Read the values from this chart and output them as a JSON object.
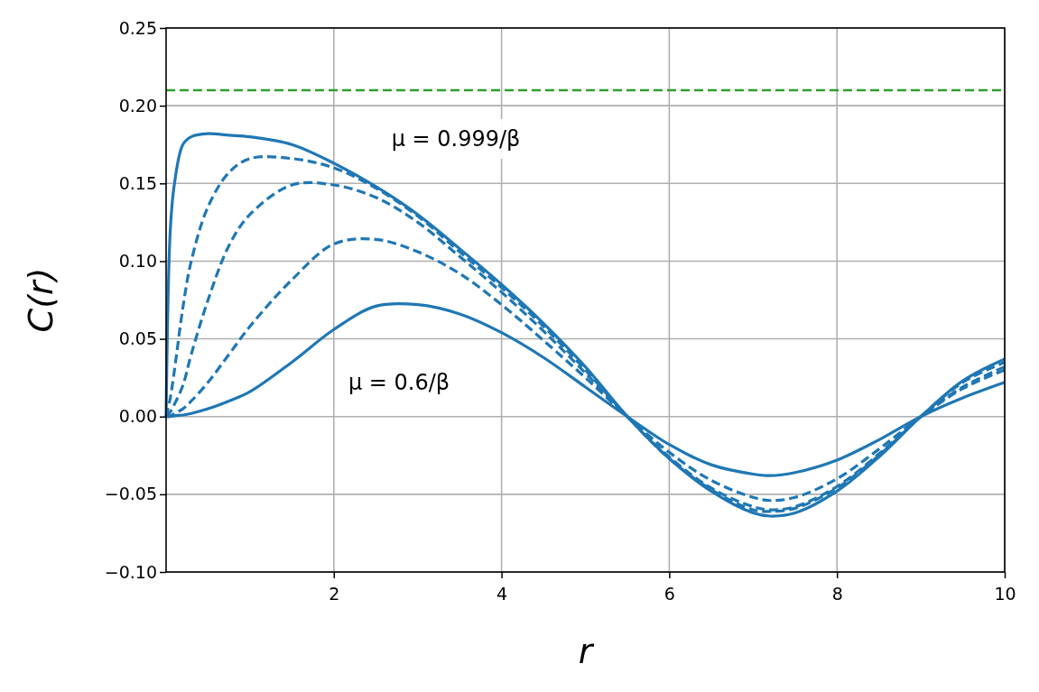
{
  "chart_data": {
    "type": "line",
    "xlabel": "r",
    "ylabel": "C(r)",
    "xlim": [
      0,
      10
    ],
    "xticks": [
      2,
      4,
      6,
      8,
      10
    ],
    "ylim": [
      -0.1,
      0.25
    ],
    "yticks": [
      {
        "value": -0.1,
        "label": "−0.10"
      },
      {
        "value": -0.05,
        "label": "−0.05"
      },
      {
        "value": 0,
        "label": "0.00"
      },
      {
        "value": 0.05,
        "label": "0.05"
      },
      {
        "value": 0.1,
        "label": "0.10"
      },
      {
        "value": 0.15,
        "label": "0.15"
      },
      {
        "value": 0.2,
        "label": "0.20"
      },
      {
        "value": 0.25,
        "label": "0.25"
      }
    ],
    "grid": true,
    "x": [
      0,
      0.05,
      0.1,
      0.2,
      0.3,
      0.5,
      0.75,
      1,
      1.5,
      2,
      2.5,
      3,
      3.5,
      4,
      4.5,
      5,
      5.5,
      6,
      6.5,
      7,
      7.2,
      7.5,
      8,
      8.5,
      9,
      9.5,
      10
    ],
    "series": [
      {
        "color": "#1f77b4",
        "line_style": "solid",
        "values": [
          0,
          0.12,
          0.15,
          0.175,
          0.18,
          0.182,
          0.181,
          0.18,
          0.175,
          0.163,
          0.148,
          0.13,
          0.108,
          0.085,
          0.06,
          0.032,
          0,
          -0.027,
          -0.048,
          -0.062,
          -0.064,
          -0.062,
          -0.048,
          -0.026,
          0,
          0.023,
          0.037
        ]
      },
      {
        "color": "#1f77b4",
        "line_style": "dashed",
        "values": [
          0,
          0.012,
          0.03,
          0.07,
          0.1,
          0.135,
          0.157,
          0.166,
          0.166,
          0.16,
          0.147,
          0.129,
          0.106,
          0.083,
          0.058,
          0.03,
          0,
          -0.027,
          -0.047,
          -0.06,
          -0.061,
          -0.059,
          -0.046,
          -0.025,
          0,
          0.022,
          0.035
        ]
      },
      {
        "color": "#1f77b4",
        "line_style": "dashed",
        "values": [
          0,
          0.003,
          0.008,
          0.02,
          0.04,
          0.075,
          0.11,
          0.13,
          0.149,
          0.149,
          0.141,
          0.125,
          0.103,
          0.08,
          0.055,
          0.028,
          0,
          -0.026,
          -0.046,
          -0.058,
          -0.06,
          -0.058,
          -0.045,
          -0.024,
          0,
          0.019,
          0.032
        ]
      },
      {
        "color": "#1f77b4",
        "line_style": "dashed",
        "values": [
          0,
          0.0005,
          0.002,
          0.005,
          0.01,
          0.022,
          0.04,
          0.058,
          0.088,
          0.111,
          0.114,
          0.106,
          0.092,
          0.072,
          0.049,
          0.025,
          0,
          -0.023,
          -0.041,
          -0.052,
          -0.054,
          -0.052,
          -0.04,
          -0.021,
          0,
          0.018,
          0.03
        ]
      },
      {
        "color": "#1f77b4",
        "line_style": "solid",
        "values": [
          0,
          0,
          0.0005,
          0.001,
          0.002,
          0.005,
          0.01,
          0.016,
          0.035,
          0.056,
          0.071,
          0.072,
          0.066,
          0.054,
          0.038,
          0.019,
          0,
          -0.018,
          -0.031,
          -0.037,
          -0.038,
          -0.036,
          -0.028,
          -0.015,
          0,
          0.012,
          0.022
        ]
      }
    ],
    "ref_lines": [
      {
        "axis": "y",
        "value": 0.21,
        "color": "#2ca02c",
        "line_style": "dashed"
      }
    ],
    "annotations": [
      "μ = 0.999/β",
      "μ = 0.6/β"
    ]
  }
}
